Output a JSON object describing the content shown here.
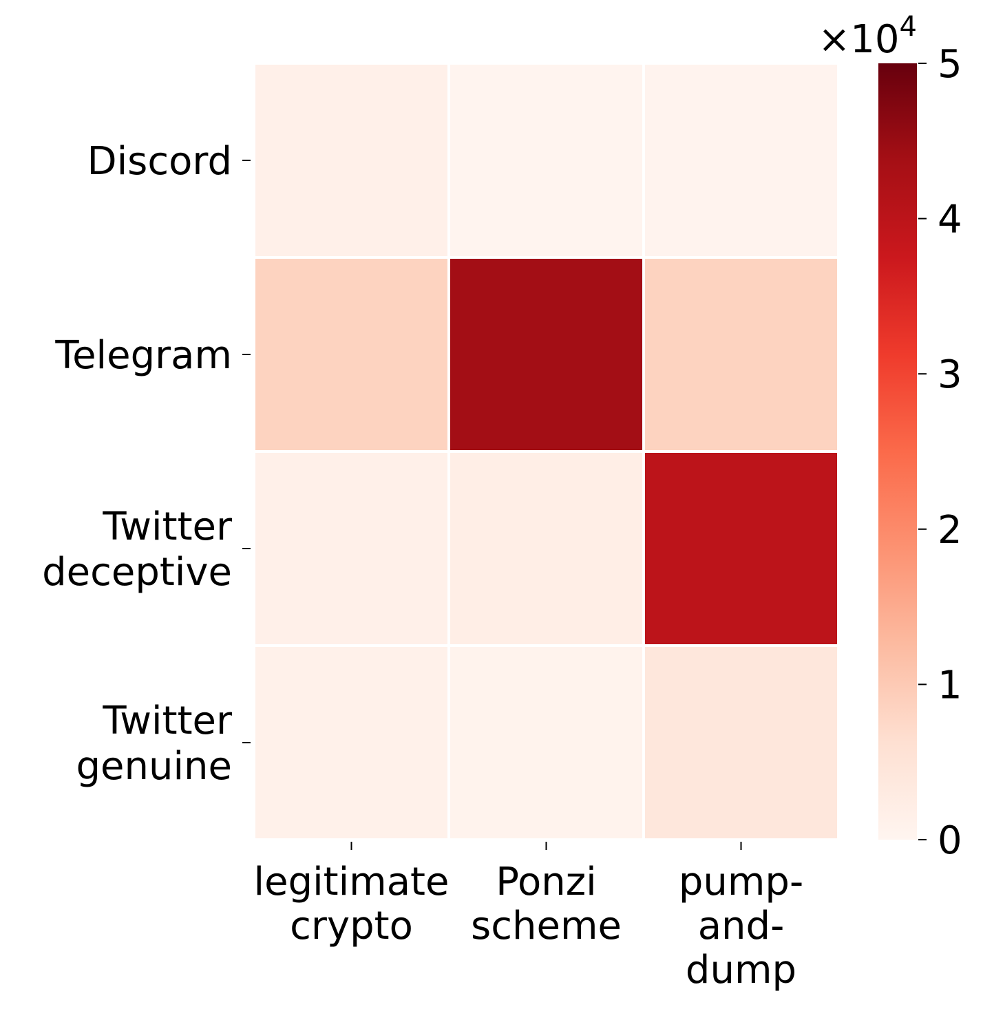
{
  "chart_data": {
    "type": "heatmap",
    "title": "",
    "xlabel": "",
    "ylabel": "",
    "x_categories": [
      [
        "legitimate",
        "crypto"
      ],
      [
        "Ponzi",
        "scheme"
      ],
      [
        "pump-",
        "and-",
        "dump"
      ]
    ],
    "y_categories": [
      [
        "Discord"
      ],
      [
        "Telegram"
      ],
      [
        "Twitter",
        "deceptive"
      ],
      [
        "Twitter",
        "genuine"
      ]
    ],
    "values": [
      [
        1500,
        300,
        500
      ],
      [
        8500,
        44000,
        8500
      ],
      [
        1500,
        2000,
        40000
      ],
      [
        1200,
        700,
        4200
      ]
    ],
    "colorbar": {
      "min": 0,
      "max": 50000,
      "ticks": [
        "0",
        "1",
        "2",
        "3",
        "4",
        "5"
      ],
      "multiplier_base": "×10",
      "multiplier_exp": "4",
      "colormap": "Reds",
      "colormap_stops": [
        "#fff5f0",
        "#fee0d2",
        "#fcbba1",
        "#fc9272",
        "#fb6a4a",
        "#ef3b2c",
        "#cb181d",
        "#a50f15",
        "#67000d"
      ]
    },
    "grid_line_color": "#ffffff"
  }
}
